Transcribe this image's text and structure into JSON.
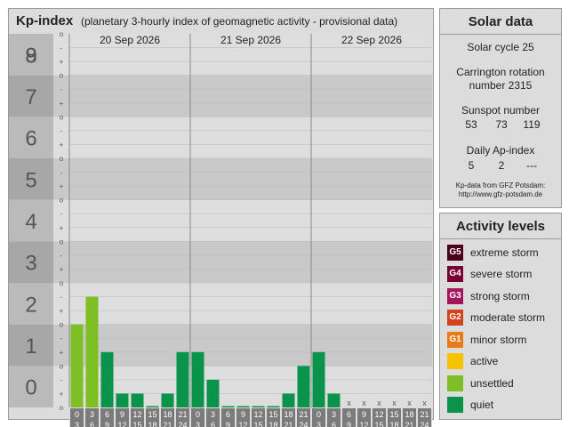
{
  "header": {
    "title": "Kp-index",
    "subtitle": "(planetary 3-hourly index of geomagnetic activity - provisional data)"
  },
  "chart_data": {
    "type": "bar",
    "title": "Kp-index",
    "subtitle": "(planetary 3-hourly index of geomagnetic activity - provisional data)",
    "ylim": [
      0,
      9
    ],
    "y_ticks": [
      "0",
      "1",
      "2",
      "3",
      "4",
      "5",
      "6",
      "7",
      "8",
      "9"
    ],
    "sub_ticks": [
      "-",
      "o",
      "+"
    ],
    "days": [
      "20 Sep 2026",
      "21 Sep 2026",
      "22 Sep 2026"
    ],
    "hour_start_labels": [
      "0",
      "3",
      "6",
      "9",
      "12",
      "15",
      "18",
      "21"
    ],
    "hour_end_labels": [
      "3",
      "6",
      "9",
      "12",
      "15",
      "18",
      "21",
      "24"
    ],
    "missing_marker": "x",
    "values": [
      [
        2.0,
        2.667,
        1.333,
        0.333,
        0.333,
        0.0,
        0.333,
        1.333
      ],
      [
        1.333,
        0.667,
        0.0,
        0.0,
        0.0,
        0.0,
        0.333,
        1.0
      ],
      [
        1.333,
        0.333,
        null,
        null,
        null,
        null,
        null,
        null
      ]
    ],
    "colors": {
      "quiet": "#0a934a",
      "unsettled": "#7fbf26",
      "grid_band_dark": "#c9c9c9",
      "grid_band_light": "#dedede",
      "axis_band_dark": "#a7a7a7",
      "axis_band_light": "#bababa",
      "x_label_bg": "#7b7b7b"
    }
  },
  "solar": {
    "title": "Solar data",
    "cycle": "Solar cycle 25",
    "carrington_line1": "Carrington rotation",
    "carrington_line2": "number 2315",
    "sunspot_title": "Sunspot number",
    "sunspot_values": [
      "53",
      "73",
      "119"
    ],
    "ap_title": "Daily Ap-index",
    "ap_values": [
      "5",
      "2",
      "---"
    ],
    "source_line1": "Kp-data from  GFZ Potsdam:",
    "source_line2": "http://www.gfz-potsdam.de"
  },
  "activity": {
    "title": "Activity levels",
    "levels": [
      {
        "code": "G5",
        "label": "extreme storm",
        "color": "#4d0019"
      },
      {
        "code": "G4",
        "label": "severe storm",
        "color": "#7a0033"
      },
      {
        "code": "G3",
        "label": "strong storm",
        "color": "#a3165c"
      },
      {
        "code": "G2",
        "label": "moderate storm",
        "color": "#d1431a"
      },
      {
        "code": "G1",
        "label": "minor storm",
        "color": "#e67d1a"
      },
      {
        "code": "",
        "label": "active",
        "color": "#f7c200"
      },
      {
        "code": "",
        "label": "unsettled",
        "color": "#7fbf26"
      },
      {
        "code": "",
        "label": "quiet",
        "color": "#0a934a"
      }
    ]
  }
}
